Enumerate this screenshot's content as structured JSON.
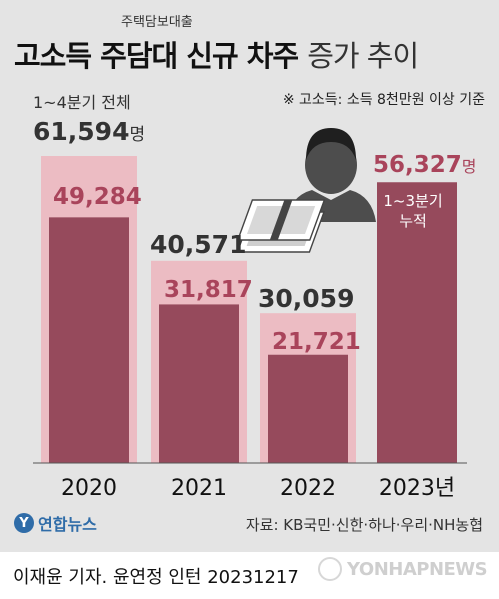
{
  "header": {
    "subtitle": "주택담보대출",
    "title_bold": "고소득 주담대 신규 차주",
    "title_light": "증가 추이",
    "note": "※ 고소득: 소득 8천만원 이상 기준"
  },
  "annotations": {
    "full_year_label": "1~4분기 전체",
    "partial_label_line1": "1~3분기",
    "partial_label_line2": "누적",
    "unit": "명"
  },
  "chart_data": {
    "type": "bar",
    "categories": [
      "2020",
      "2021",
      "2022",
      "2023년"
    ],
    "series": [
      {
        "values": [
          61594,
          40571,
          30059,
          null
        ]
      },
      {
        "values": [
          49284,
          31817,
          21721,
          56327
        ]
      }
    ],
    "value_labels_full": [
      "61,594",
      "40,571",
      "30,059",
      null
    ],
    "value_labels_partial": [
      "49,284",
      "31,817",
      "21,721",
      "56,327"
    ],
    "colors": {
      "full": "#ecbcc3",
      "partial": "#964a5c",
      "partial_text": "#a9445b"
    }
  },
  "footer": {
    "logo_mark": "Y",
    "logo_text": "연합뉴스",
    "source": "자료: KB국민·신한·하나·우리·NH농협",
    "credit": "이재윤 기자. 윤연정 인턴  20231217",
    "watermark": "YONHAPNEWS"
  },
  "icons": [
    "person-icon",
    "money-stack-icon"
  ]
}
